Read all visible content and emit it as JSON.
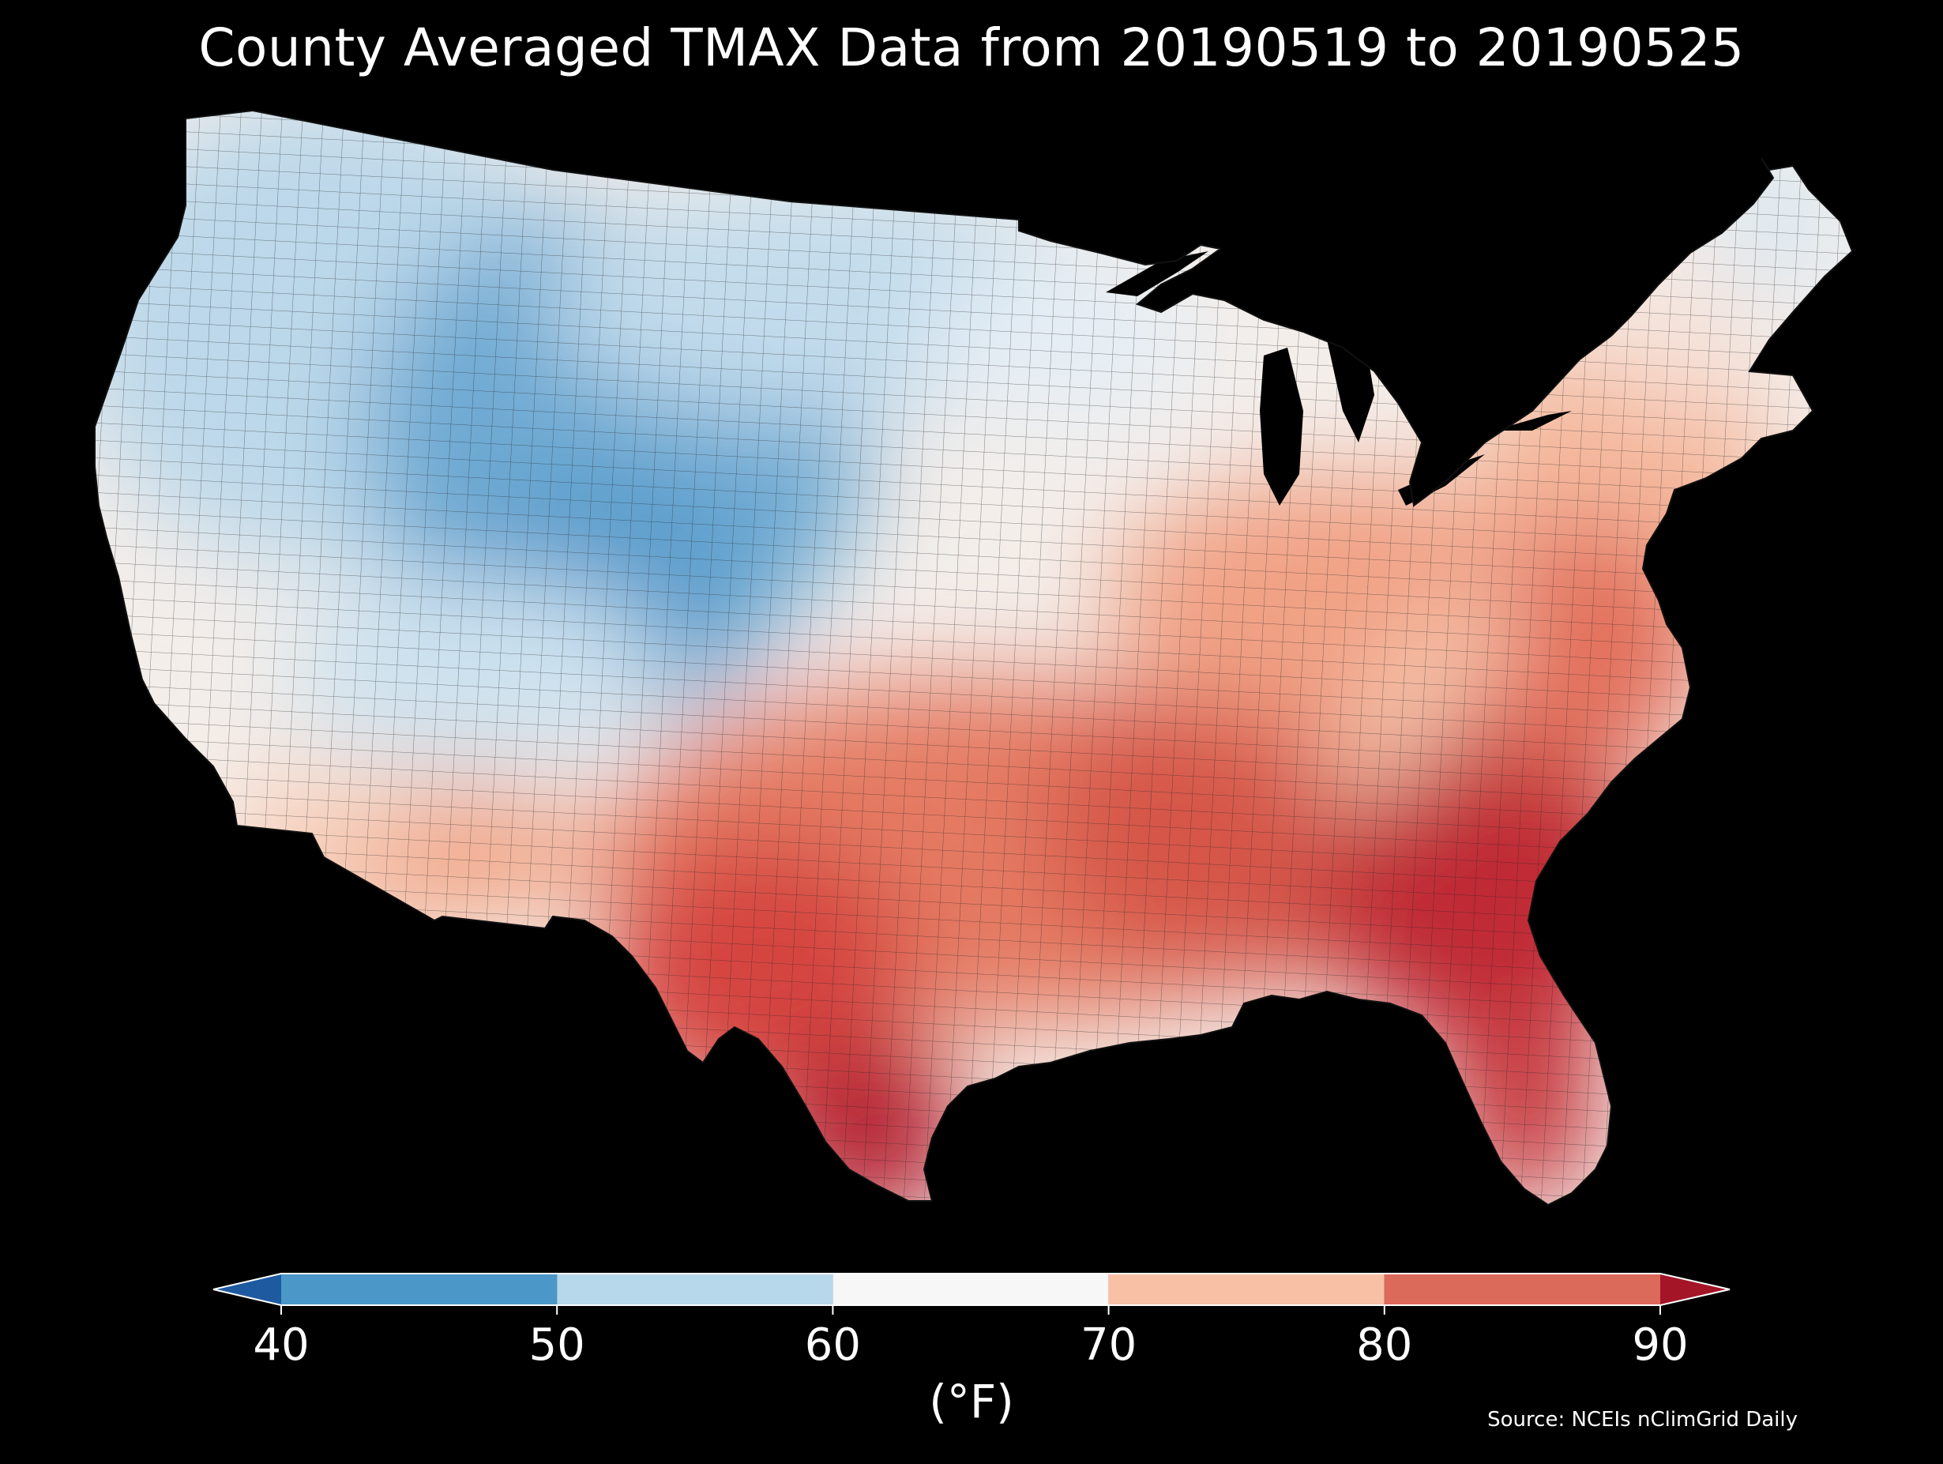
{
  "title": "County Averaged TMAX Data from 20190519 to 20190525",
  "colorbar": {
    "unit_label": "(°F)",
    "min": 40,
    "max": 90,
    "ticks": [
      40,
      50,
      60,
      70,
      80,
      90
    ],
    "bins": [
      {
        "from": 40,
        "to": 50,
        "color": "#4b98c8"
      },
      {
        "from": 50,
        "to": 60,
        "color": "#b7d7ea"
      },
      {
        "from": 60,
        "to": 70,
        "color": "#f7f7f7"
      },
      {
        "from": 70,
        "to": 80,
        "color": "#f8c1a5"
      },
      {
        "from": 80,
        "to": 90,
        "color": "#dc6a5a"
      }
    ],
    "under_color": "#1e5aa0",
    "over_color": "#a31527",
    "extend": "both"
  },
  "source": "Source: NCEIs nClimGrid Daily",
  "map": {
    "region": "Contiguous United States",
    "resolution": "county",
    "variable": "TMAX",
    "pattern": "cool (40-60 °F) across the northern Rockies and Northwest, near 60-70 °F in the Upper Midwest and Northeast, warm to hot (70-90+ °F) across the South and Southeast, hottest in south Texas, Georgia and Florida"
  }
}
